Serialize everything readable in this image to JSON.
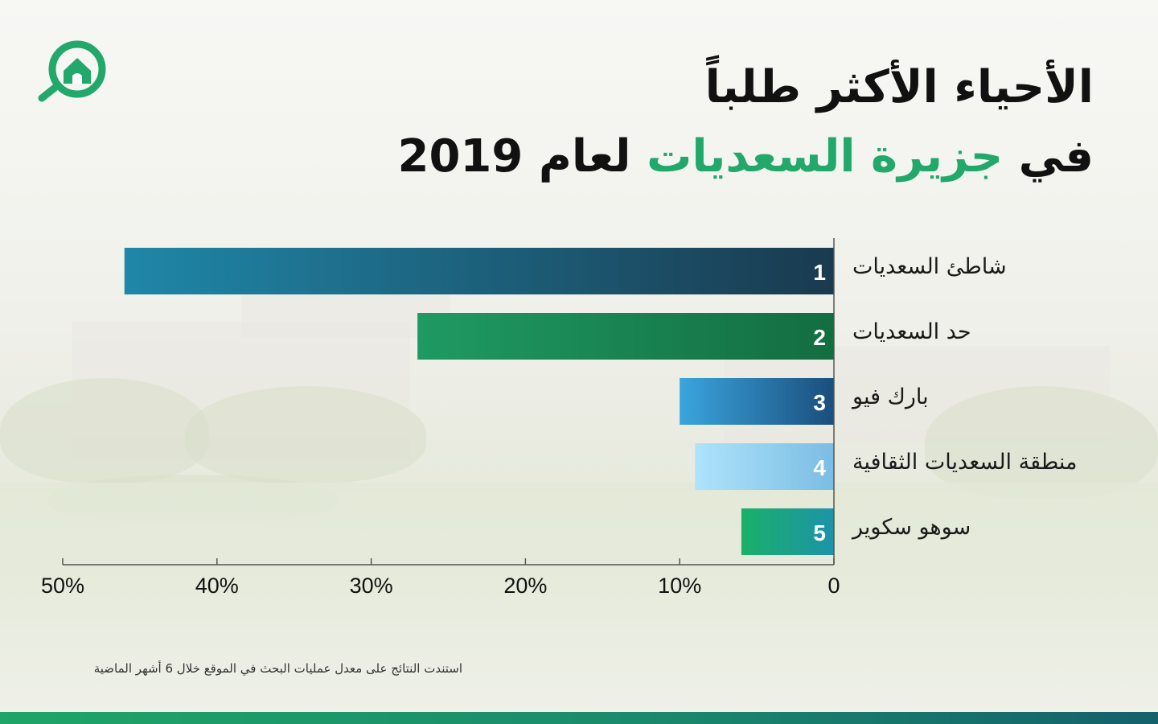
{
  "title": {
    "line1": "الأحياء الأكثر طلباً",
    "line2_prefix": "في",
    "line2_highlight": "جزيرة السعديات",
    "line2_suffix": "لعام 2019"
  },
  "colors": {
    "accent_green": "#21a86a",
    "bar1": [
      "#1f87a8",
      "#1a3a4f"
    ],
    "bar2": [
      "#1f9a63",
      "#136d41"
    ],
    "bar3": [
      "#3aa5de",
      "#1b4e7c"
    ],
    "bar4": [
      "#aee3fb",
      "#7bbde3"
    ],
    "bar5": [
      "#1ab06a",
      "#1d93a9"
    ]
  },
  "chart_data": {
    "type": "bar",
    "orientation": "horizontal",
    "categories": [
      "شاطئ السعديات",
      "حد السعديات",
      "بارك فيو",
      "منطقة السعديات الثقافية",
      "سوهو سكوير"
    ],
    "ranks": [
      "1",
      "2",
      "3",
      "4",
      "5"
    ],
    "values": [
      46,
      27,
      10,
      9,
      6
    ],
    "unit": "%",
    "xlim": [
      0,
      50
    ],
    "x_direction": "right-to-left",
    "ticks": [
      0,
      10,
      20,
      30,
      40,
      50
    ],
    "tick_labels": [
      "0",
      "10%",
      "20%",
      "30%",
      "40%",
      "50%"
    ],
    "grid": false
  },
  "footnote": "استندت النتائج على معدل عمليات البحث في الموقع خلال 6 أشهر الماضية"
}
